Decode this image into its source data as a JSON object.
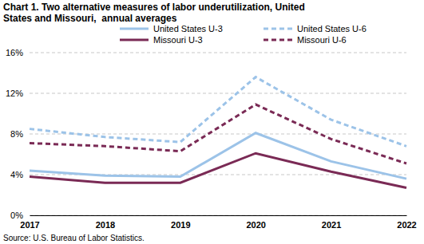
{
  "chart_data": {
    "type": "line",
    "title": "Chart 1. Two alternative measures of labor underutilization, United States and Missouri,  annual averages",
    "source": "Source: U.S. Bureau of Labor Statistics.",
    "categories": [
      "2017",
      "2018",
      "2019",
      "2020",
      "2021",
      "2022"
    ],
    "series": [
      {
        "name": "United States U-3",
        "color": "#9cc3e8",
        "line_style": "solid",
        "values": [
          4.4,
          3.9,
          3.8,
          8.1,
          5.3,
          3.6
        ]
      },
      {
        "name": "United States U-6",
        "color": "#9cc3e8",
        "line_style": "dashed",
        "values": [
          8.5,
          7.7,
          7.2,
          13.6,
          9.4,
          6.8
        ]
      },
      {
        "name": "Missouri U-3",
        "color": "#7a2a55",
        "line_style": "solid",
        "values": [
          3.8,
          3.2,
          3.2,
          6.1,
          4.3,
          2.7
        ]
      },
      {
        "name": "Missouri U-6",
        "color": "#7a2a55",
        "line_style": "dashed",
        "values": [
          7.1,
          6.8,
          6.3,
          10.9,
          7.5,
          5.1
        ]
      }
    ],
    "ylim": [
      0,
      16
    ],
    "yticks": [
      {
        "value": 0,
        "label": "0%"
      },
      {
        "value": 4,
        "label": "4%"
      },
      {
        "value": 8,
        "label": "8%"
      },
      {
        "value": 12,
        "label": "12%"
      },
      {
        "value": 16,
        "label": "16%"
      }
    ],
    "grid": true,
    "legend": "top"
  }
}
